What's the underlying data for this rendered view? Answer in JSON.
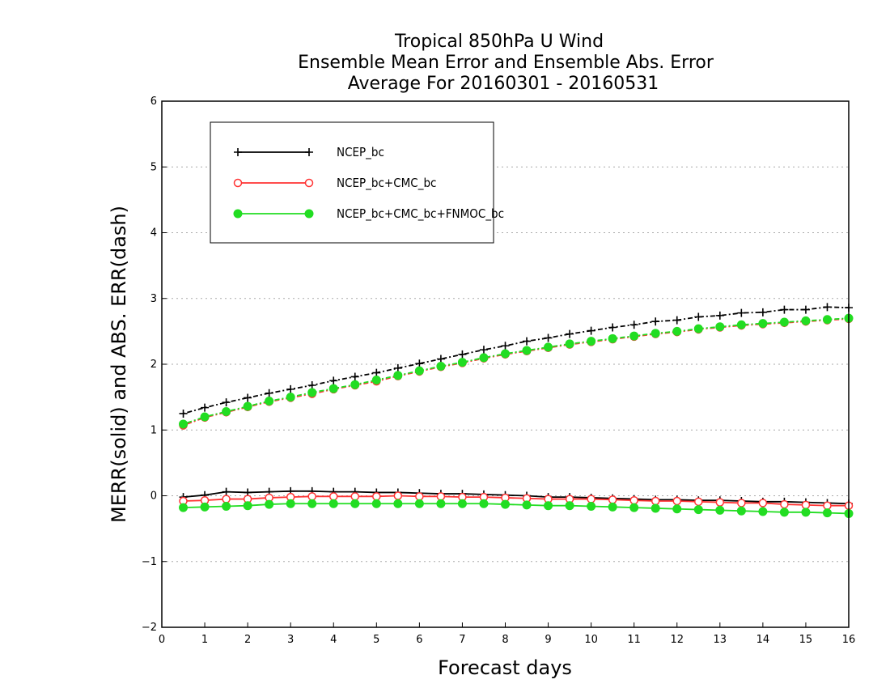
{
  "title": [
    "Tropical 850hPa U Wind",
    "Ensemble Mean Error and Ensemble Abs. Error",
    "Average For 20160301 - 20160531"
  ],
  "colors": {
    "NCEP_bc": "#000000",
    "NCEP_bc+CMC_bc": "#ff3333",
    "NCEP_bc+CMC_bc+FNMOC_bc": "#22dd22",
    "grid": "#aaaaaa"
  },
  "chart_data": {
    "type": "line",
    "title": "Tropical 850hPa U Wind / Ensemble Mean Error and Ensemble Abs. Error / Average For 20160301 - 20160531",
    "xlabel": "Forecast days",
    "ylabel": "MERR(solid) and ABS. ERR(dash)",
    "xlim": [
      0,
      16
    ],
    "ylim": [
      -2,
      6
    ],
    "xticks": [
      0,
      1,
      2,
      3,
      4,
      5,
      6,
      7,
      8,
      9,
      10,
      11,
      12,
      13,
      14,
      15,
      16
    ],
    "yticks": [
      -2,
      -1,
      0,
      1,
      2,
      3,
      4,
      5,
      6
    ],
    "ytick_labels": [
      "−2",
      "−1",
      "0",
      "1",
      "2",
      "3",
      "4",
      "5",
      "6"
    ],
    "grid": "horizontal dotted",
    "legend_placement": "top-left",
    "x": [
      0.5,
      1,
      1.5,
      2,
      2.5,
      3,
      3.5,
      4,
      4.5,
      5,
      5.5,
      6,
      6.5,
      7,
      7.5,
      8,
      8.5,
      9,
      9.5,
      10,
      10.5,
      11,
      11.5,
      12,
      12.5,
      13,
      13.5,
      14,
      14.5,
      15,
      15.5,
      16
    ],
    "series": [
      {
        "name": "NCEP_bc",
        "marker": "plus",
        "merr": [
          -0.02,
          0.01,
          0.06,
          0.05,
          0.06,
          0.07,
          0.07,
          0.06,
          0.06,
          0.05,
          0.05,
          0.04,
          0.03,
          0.03,
          0.02,
          0.01,
          0.0,
          -0.02,
          -0.02,
          -0.03,
          -0.04,
          -0.05,
          -0.06,
          -0.06,
          -0.07,
          -0.07,
          -0.08,
          -0.09,
          -0.09,
          -0.1,
          -0.11,
          -0.12
        ],
        "abs_err": [
          1.25,
          1.34,
          1.42,
          1.49,
          1.56,
          1.62,
          1.68,
          1.75,
          1.81,
          1.87,
          1.94,
          2.01,
          2.08,
          2.15,
          2.22,
          2.28,
          2.35,
          2.4,
          2.46,
          2.51,
          2.56,
          2.6,
          2.65,
          2.67,
          2.72,
          2.74,
          2.78,
          2.79,
          2.83,
          2.83,
          2.87,
          2.86
        ]
      },
      {
        "name": "NCEP_bc+CMC_bc",
        "marker": "open-circle",
        "merr": [
          -0.08,
          -0.07,
          -0.05,
          -0.05,
          -0.03,
          -0.02,
          -0.01,
          -0.01,
          -0.01,
          -0.01,
          0.0,
          -0.01,
          -0.01,
          -0.02,
          -0.02,
          -0.03,
          -0.04,
          -0.05,
          -0.05,
          -0.05,
          -0.06,
          -0.07,
          -0.08,
          -0.08,
          -0.09,
          -0.1,
          -0.11,
          -0.11,
          -0.13,
          -0.14,
          -0.15,
          -0.15
        ],
        "abs_err": [
          1.07,
          1.19,
          1.27,
          1.35,
          1.43,
          1.49,
          1.55,
          1.62,
          1.68,
          1.74,
          1.82,
          1.89,
          1.96,
          2.02,
          2.09,
          2.15,
          2.2,
          2.25,
          2.3,
          2.34,
          2.38,
          2.42,
          2.46,
          2.49,
          2.53,
          2.56,
          2.59,
          2.61,
          2.63,
          2.65,
          2.67,
          2.69
        ]
      },
      {
        "name": "NCEP_bc+CMC_bc+FNMOC_bc",
        "marker": "filled-circle",
        "merr": [
          -0.18,
          -0.17,
          -0.16,
          -0.15,
          -0.13,
          -0.12,
          -0.12,
          -0.12,
          -0.12,
          -0.12,
          -0.12,
          -0.12,
          -0.12,
          -0.12,
          -0.12,
          -0.13,
          -0.14,
          -0.15,
          -0.15,
          -0.16,
          -0.17,
          -0.18,
          -0.19,
          -0.2,
          -0.21,
          -0.22,
          -0.23,
          -0.24,
          -0.25,
          -0.25,
          -0.26,
          -0.27
        ],
        "abs_err": [
          1.09,
          1.2,
          1.28,
          1.36,
          1.44,
          1.5,
          1.57,
          1.63,
          1.69,
          1.76,
          1.83,
          1.9,
          1.97,
          2.03,
          2.1,
          2.16,
          2.21,
          2.26,
          2.31,
          2.35,
          2.39,
          2.43,
          2.47,
          2.5,
          2.54,
          2.57,
          2.6,
          2.62,
          2.64,
          2.66,
          2.68,
          2.7
        ]
      }
    ]
  }
}
